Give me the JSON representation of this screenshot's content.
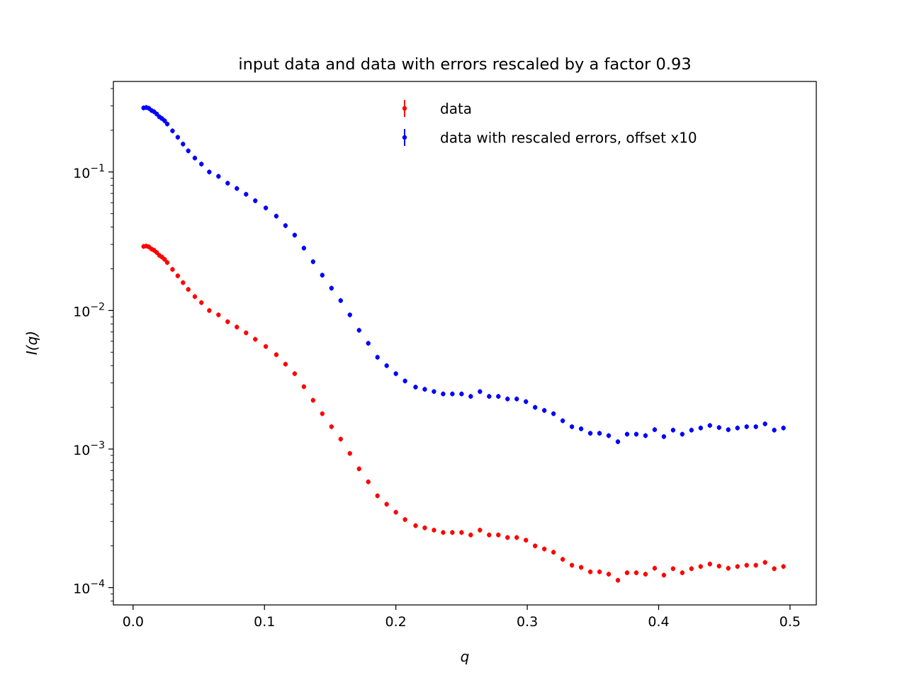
{
  "chart_data": {
    "type": "scatter",
    "title": "input data and data with errors rescaled by a factor 0.93",
    "xlabel": "q",
    "ylabel": "I(q)",
    "xscale": "linear",
    "yscale": "log",
    "xlim": [
      -0.015,
      0.52
    ],
    "ylim": [
      7.5e-05,
      0.45
    ],
    "xticks": [
      0.0,
      0.1,
      0.2,
      0.3,
      0.4,
      0.5
    ],
    "xtick_labels": [
      "0.0",
      "0.1",
      "0.2",
      "0.3",
      "0.4",
      "0.5"
    ],
    "yticks": [
      0.0001,
      0.001,
      0.01,
      0.1
    ],
    "ytick_labels": [
      {
        "base": "10",
        "exp": "−4"
      },
      {
        "base": "10",
        "exp": "−3"
      },
      {
        "base": "10",
        "exp": "−2"
      },
      {
        "base": "10",
        "exp": "−1"
      }
    ],
    "grid": false,
    "legend_position": "top-center",
    "x": [
      0.008,
      0.01,
      0.012,
      0.014,
      0.016,
      0.018,
      0.02,
      0.022,
      0.024,
      0.026,
      0.03,
      0.034,
      0.038,
      0.042,
      0.047,
      0.052,
      0.058,
      0.065,
      0.072,
      0.079,
      0.086,
      0.093,
      0.101,
      0.109,
      0.116,
      0.123,
      0.13,
      0.137,
      0.144,
      0.151,
      0.158,
      0.165,
      0.172,
      0.179,
      0.186,
      0.193,
      0.2,
      0.207,
      0.215,
      0.222,
      0.229,
      0.236,
      0.243,
      0.25,
      0.257,
      0.264,
      0.271,
      0.278,
      0.285,
      0.292,
      0.299,
      0.306,
      0.313,
      0.32,
      0.327,
      0.334,
      0.341,
      0.348,
      0.355,
      0.362,
      0.369,
      0.376,
      0.383,
      0.39,
      0.397,
      0.404,
      0.411,
      0.418,
      0.425,
      0.432,
      0.439,
      0.446,
      0.453,
      0.46,
      0.467,
      0.474,
      0.481,
      0.488,
      0.495
    ],
    "series": [
      {
        "name": "data",
        "color": "#ff0000",
        "values": [
          0.029,
          0.0292,
          0.0288,
          0.0278,
          0.0272,
          0.0262,
          0.025,
          0.0243,
          0.0234,
          0.0222,
          0.0198,
          0.0178,
          0.0159,
          0.0142,
          0.0126,
          0.0114,
          0.01,
          0.0093,
          0.0083,
          0.0076,
          0.0069,
          0.0062,
          0.0055,
          0.0048,
          0.0041,
          0.0035,
          0.00282,
          0.00225,
          0.0018,
          0.00145,
          0.00118,
          0.00093,
          0.00072,
          0.00058,
          0.00046,
          0.0004,
          0.00035,
          0.00031,
          0.00028,
          0.00027,
          0.00026,
          0.00025,
          0.00025,
          0.00025,
          0.00024,
          0.00026,
          0.00024,
          0.00024,
          0.00023,
          0.00023,
          0.00022,
          0.0002,
          0.00019,
          0.00018,
          0.00016,
          0.000145,
          0.00014,
          0.00013,
          0.00013,
          0.000125,
          0.000113,
          0.000128,
          0.000128,
          0.000125,
          0.000138,
          0.000123,
          0.000137,
          0.000128,
          0.000137,
          0.000142,
          0.000148,
          0.000143,
          0.000138,
          0.000142,
          0.000145,
          0.000145,
          0.000152,
          0.000137,
          0.000142
        ]
      },
      {
        "name": "data with rescaled errors, offset x10",
        "color": "#0000ff",
        "values": [
          0.29,
          0.292,
          0.288,
          0.278,
          0.272,
          0.262,
          0.25,
          0.243,
          0.234,
          0.222,
          0.198,
          0.178,
          0.159,
          0.142,
          0.126,
          0.114,
          0.1,
          0.093,
          0.083,
          0.076,
          0.069,
          0.062,
          0.055,
          0.048,
          0.041,
          0.035,
          0.0282,
          0.0225,
          0.018,
          0.0145,
          0.0118,
          0.0093,
          0.0072,
          0.0058,
          0.0046,
          0.004,
          0.0035,
          0.0031,
          0.0028,
          0.0027,
          0.0026,
          0.0025,
          0.0025,
          0.0025,
          0.0024,
          0.0026,
          0.0024,
          0.0024,
          0.0023,
          0.0023,
          0.0022,
          0.002,
          0.0019,
          0.0018,
          0.0016,
          0.00145,
          0.0014,
          0.0013,
          0.0013,
          0.00125,
          0.00113,
          0.00128,
          0.00128,
          0.00125,
          0.00138,
          0.00123,
          0.00137,
          0.00128,
          0.00137,
          0.00142,
          0.00148,
          0.00143,
          0.00138,
          0.00142,
          0.00145,
          0.00145,
          0.00152,
          0.00137,
          0.00142
        ]
      }
    ]
  }
}
